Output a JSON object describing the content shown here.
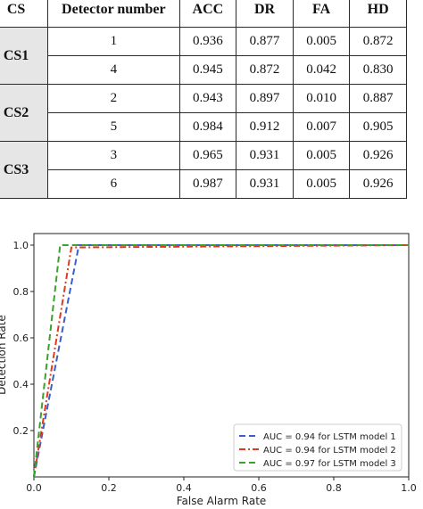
{
  "table": {
    "headers": [
      "CS",
      "Detector number",
      "ACC",
      "DR",
      "FA",
      "HD"
    ],
    "groups": [
      {
        "cs": "CS1",
        "rows": [
          [
            "1",
            "0.936",
            "0.877",
            "0.005",
            "0.872"
          ],
          [
            "4",
            "0.945",
            "0.872",
            "0.042",
            "0.830"
          ]
        ]
      },
      {
        "cs": "CS2",
        "rows": [
          [
            "2",
            "0.943",
            "0.897",
            "0.010",
            "0.887"
          ],
          [
            "5",
            "0.984",
            "0.912",
            "0.007",
            "0.905"
          ]
        ]
      },
      {
        "cs": "CS3",
        "rows": [
          [
            "3",
            "0.965",
            "0.931",
            "0.005",
            "0.926"
          ],
          [
            "6",
            "0.987",
            "0.931",
            "0.005",
            "0.926"
          ]
        ]
      }
    ]
  },
  "chart_data": {
    "type": "line",
    "xlabel": "False Alarm Rate",
    "ylabel": "Detection Rate",
    "xlim": [
      0,
      1
    ],
    "ylim": [
      0,
      1.05
    ],
    "xticks": [
      "0.0",
      "0.2",
      "0.4",
      "0.6",
      "0.8",
      "1.0"
    ],
    "yticks": [
      "0.2",
      "0.4",
      "0.6",
      "0.8",
      "1.0"
    ],
    "legend_position": "lower-right",
    "series": [
      {
        "name": "AUC = 0.94 for LSTM model 1",
        "color": "#3a5fcd",
        "dash": "dashed",
        "x": [
          0,
          0.12,
          1.0
        ],
        "y": [
          0,
          1.0,
          1.0
        ]
      },
      {
        "name": "AUC = 0.94 for LSTM model 2",
        "color": "#e03a1e",
        "dash": "dashdot",
        "x": [
          0,
          0.1,
          1.0
        ],
        "y": [
          0,
          0.99,
          1.0
        ]
      },
      {
        "name": "AUC = 0.97 for LSTM model 3",
        "color": "#3aa02e",
        "dash": "dashed",
        "x": [
          0,
          0.07,
          1.0
        ],
        "y": [
          0,
          1.0,
          1.0
        ]
      }
    ]
  }
}
